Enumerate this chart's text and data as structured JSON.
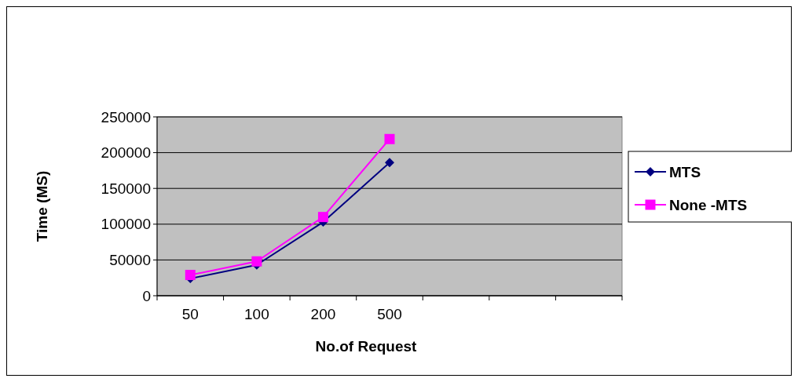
{
  "chart_data": {
    "type": "line",
    "xlabel": "No.of Request",
    "ylabel": "Time (MS)",
    "categories": [
      "50",
      "100",
      "200",
      "500",
      null,
      null,
      null
    ],
    "series": [
      {
        "name": "MTS",
        "color": "#000080",
        "marker": "diamond",
        "values": [
          24000,
          43000,
          103000,
          186000,
          null,
          null,
          null
        ]
      },
      {
        "name": "None -MTS",
        "color": "#ff00ff",
        "marker": "square",
        "values": [
          29000,
          48000,
          110000,
          219000,
          null,
          null,
          null
        ]
      }
    ],
    "ylim": [
      0,
      250000
    ],
    "yticks": [
      0,
      50000,
      100000,
      150000,
      200000,
      250000
    ],
    "grid": "y",
    "legend": "right"
  }
}
